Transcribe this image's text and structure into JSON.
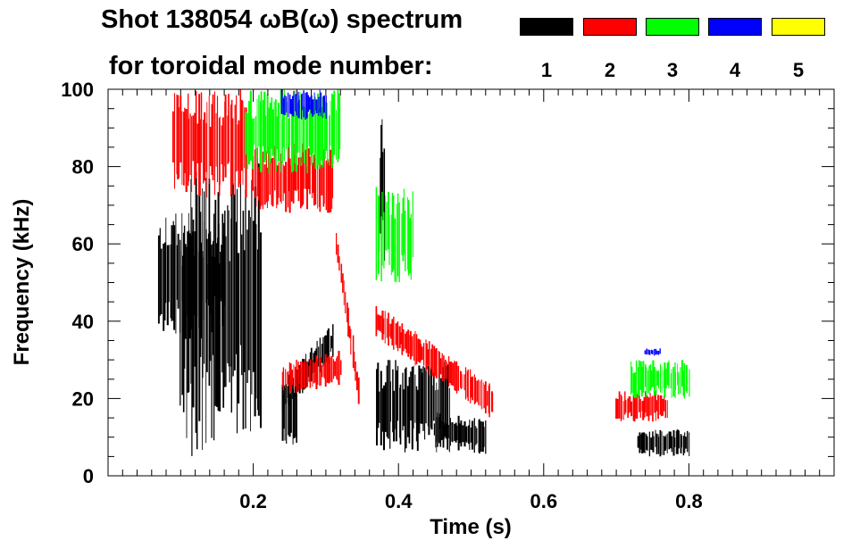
{
  "chart_data": {
    "type": "scatter",
    "title_line1": "Shot 138054 ωB(ω) spectrum",
    "title_line2": "for toroidal mode number:",
    "xlabel": "Time (s)",
    "ylabel": "Frequency (kHz)",
    "xlim": [
      0.0,
      1.0
    ],
    "ylim": [
      0,
      100
    ],
    "x_ticks": [
      0.2,
      0.4,
      0.6,
      0.8
    ],
    "x_tick_labels": [
      "0.2",
      "0.4",
      "0.6",
      "0.8"
    ],
    "y_ticks": [
      0,
      20,
      40,
      60,
      80,
      100
    ],
    "y_tick_labels": [
      "0",
      "20",
      "40",
      "60",
      "80",
      "100"
    ],
    "legend": [
      {
        "label": "1",
        "color": "#000000"
      },
      {
        "label": "2",
        "color": "#ff0000"
      },
      {
        "label": "3",
        "color": "#00ff00"
      },
      {
        "label": "4",
        "color": "#0000ff"
      },
      {
        "label": "5",
        "color": "#ffff00"
      }
    ],
    "series": [
      {
        "name": "n=1",
        "color": "#000000",
        "features": [
          {
            "kind": "band",
            "t0": 0.07,
            "t1": 0.16,
            "fmin": 35,
            "fmax": 68
          },
          {
            "kind": "band",
            "t0": 0.1,
            "t1": 0.17,
            "fmin": 5,
            "fmax": 80
          },
          {
            "kind": "band",
            "t0": 0.17,
            "t1": 0.21,
            "fmin": 10,
            "fmax": 82
          },
          {
            "kind": "band",
            "t0": 0.24,
            "t1": 0.26,
            "fmin": 8,
            "fmax": 24
          },
          {
            "kind": "chirp",
            "t0": 0.24,
            "t1": 0.31,
            "f0": 20,
            "f1": 35
          },
          {
            "kind": "band",
            "t0": 0.37,
            "t1": 0.47,
            "fmin": 6,
            "fmax": 30
          },
          {
            "kind": "chirp",
            "t0": 0.45,
            "t1": 0.52,
            "f0": 12,
            "f1": 10
          },
          {
            "kind": "band",
            "t0": 0.73,
            "t1": 0.8,
            "fmin": 5,
            "fmax": 12
          },
          {
            "kind": "band",
            "t0": 0.375,
            "t1": 0.38,
            "fmin": 55,
            "fmax": 95
          }
        ]
      },
      {
        "name": "n=2",
        "color": "#ff0000",
        "features": [
          {
            "kind": "band",
            "t0": 0.09,
            "t1": 0.19,
            "fmin": 72,
            "fmax": 100
          },
          {
            "kind": "band",
            "t0": 0.2,
            "t1": 0.31,
            "fmin": 68,
            "fmax": 86
          },
          {
            "kind": "chirp",
            "t0": 0.24,
            "t1": 0.32,
            "f0": 25,
            "f1": 28
          },
          {
            "kind": "chirp",
            "t0": 0.315,
            "t1": 0.345,
            "f0": 60,
            "f1": 22
          },
          {
            "kind": "chirp",
            "t0": 0.37,
            "t1": 0.53,
            "f0": 40,
            "f1": 19
          },
          {
            "kind": "band",
            "t0": 0.7,
            "t1": 0.77,
            "fmin": 14,
            "fmax": 22
          }
        ]
      },
      {
        "name": "n=3",
        "color": "#00ff00",
        "features": [
          {
            "kind": "band",
            "t0": 0.19,
            "t1": 0.32,
            "fmin": 78,
            "fmax": 100
          },
          {
            "kind": "band",
            "t0": 0.37,
            "t1": 0.42,
            "fmin": 50,
            "fmax": 75
          },
          {
            "kind": "band",
            "t0": 0.72,
            "t1": 0.8,
            "fmin": 20,
            "fmax": 30
          }
        ]
      },
      {
        "name": "n=4",
        "color": "#0000ff",
        "features": [
          {
            "kind": "band",
            "t0": 0.24,
            "t1": 0.3,
            "fmin": 92,
            "fmax": 100
          },
          {
            "kind": "band",
            "t0": 0.74,
            "t1": 0.76,
            "fmin": 31,
            "fmax": 33
          }
        ]
      },
      {
        "name": "n=5",
        "color": "#ffff00",
        "features": []
      }
    ]
  }
}
